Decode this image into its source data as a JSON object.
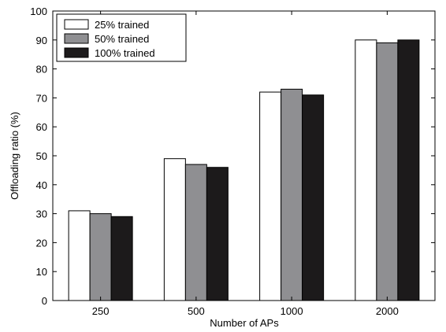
{
  "chart_data": {
    "type": "bar",
    "title": "",
    "xlabel": "Number of APs",
    "ylabel": "Offloading ratio (%)",
    "categories": [
      "250",
      "500",
      "1000",
      "2000"
    ],
    "ylim": [
      0,
      100
    ],
    "yticks": [
      "0",
      "10",
      "20",
      "30",
      "40",
      "50",
      "60",
      "70",
      "80",
      "90",
      "100"
    ],
    "grid": false,
    "legend_position": "top-left",
    "series": [
      {
        "name": "25% trained",
        "color": "#ffffff",
        "values": [
          31,
          49,
          72,
          90
        ]
      },
      {
        "name": "50% trained",
        "color": "#8f8f92",
        "values": [
          30,
          47,
          73,
          89
        ]
      },
      {
        "name": "100% trained",
        "color": "#1c1a1b",
        "values": [
          29,
          46,
          71,
          90
        ]
      }
    ]
  }
}
